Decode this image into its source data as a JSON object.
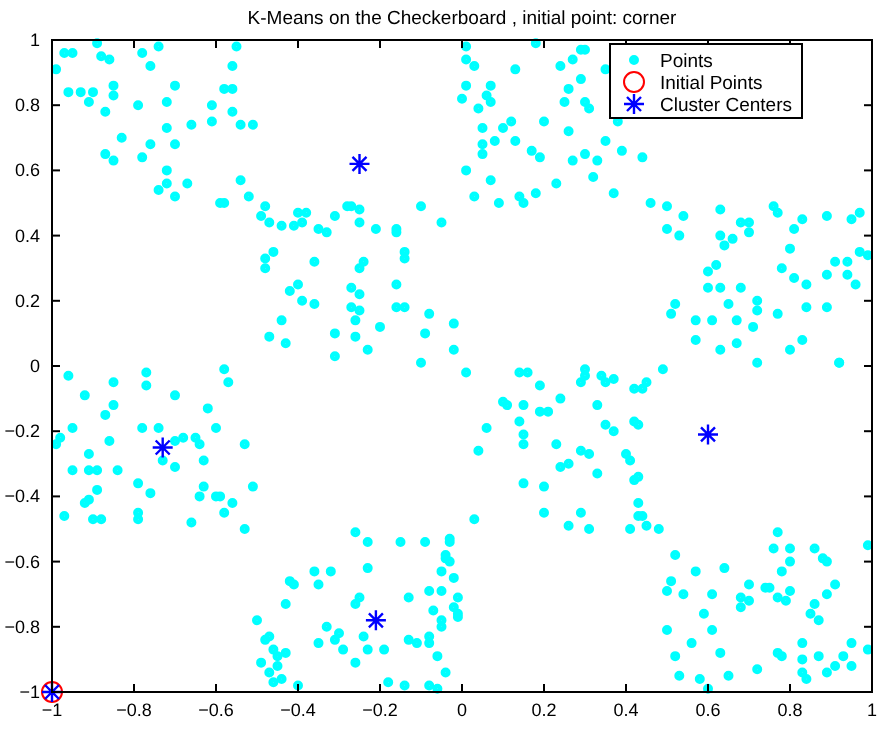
{
  "chart_data": {
    "type": "scatter",
    "title": "K-Means on the Checkerboard , initial point: corner",
    "xlim": [
      -1,
      1
    ],
    "ylim": [
      -1,
      1
    ],
    "xticks": [
      -1,
      -0.8,
      -0.6,
      -0.4,
      -0.2,
      0,
      0.2,
      0.4,
      0.6,
      0.8,
      1
    ],
    "yticks": [
      -1,
      -0.8,
      -0.6,
      -0.4,
      -0.2,
      0,
      0.2,
      0.4,
      0.6,
      0.8,
      1
    ],
    "grid": false,
    "legend": "top right",
    "series": [
      {
        "name": "Points",
        "color": "#00ffff",
        "marker": "circle",
        "x": [
          -0.97,
          -0.95,
          -0.99,
          -0.96,
          -0.93,
          -0.9,
          -0.91,
          -0.89,
          -0.88,
          -0.86,
          -0.85,
          -0.87,
          -0.85,
          -0.83,
          -0.87,
          -0.85,
          -0.79,
          -0.78,
          -0.76,
          -0.74,
          -0.78,
          -0.76,
          -0.72,
          -0.72,
          -0.7,
          -0.72,
          -0.74,
          -0.72,
          -0.7,
          -0.67,
          -0.7,
          -0.66,
          -0.61,
          -0.61,
          -0.58,
          -0.56,
          -0.56,
          -0.55,
          -0.56,
          -0.54,
          -0.51,
          -0.59,
          -0.58,
          -0.54,
          -0.52,
          -0.48,
          -0.49,
          -0.47,
          -0.44,
          -0.41,
          -0.4,
          -0.38,
          -0.39,
          -0.35,
          -0.33,
          -0.31,
          -0.28,
          -0.27,
          -0.25,
          -0.25,
          -0.21,
          -0.16,
          -0.16,
          -0.14,
          -0.14,
          -0.1,
          -0.05,
          -0.48,
          -0.48,
          -0.46,
          -0.42,
          -0.4,
          -0.39,
          -0.36,
          -0.36,
          -0.47,
          -0.44,
          -0.43,
          -0.31,
          -0.31,
          -0.27,
          -0.27,
          -0.25,
          -0.25,
          -0.24,
          -0.25,
          -0.26,
          -0.26,
          -0.23,
          -0.2,
          -0.16,
          -0.16,
          -0.14,
          -0.1,
          -0.09,
          -0.08,
          -0.02,
          -0.02,
          0.01,
          0.01,
          0.03,
          0.13,
          0.18,
          0.01,
          0.07,
          0.06,
          0.07,
          0.04,
          0,
          0.12,
          0.1,
          0.05,
          0.05,
          0.05,
          0.08,
          0.13,
          0.17,
          0.19,
          0.2,
          0.24,
          0.27,
          0.29,
          0.3,
          0.29,
          0.26,
          0.25,
          0.26,
          0.3,
          0.31,
          0.35,
          0.38,
          0.35,
          0.3,
          0.33,
          0.39,
          0.44,
          0.01,
          0.07,
          0.03,
          0.09,
          0.14,
          0.15,
          0.18,
          0.23,
          0.27,
          0.32,
          0.37,
          0.46,
          0.5,
          0.54,
          0.5,
          0.53,
          0.63,
          0.63,
          0.64,
          0.66,
          0.68,
          0.7,
          0.7,
          0.76,
          0.77,
          0.81,
          0.83,
          0.89,
          0.95,
          0.97,
          0.99,
          0.97,
          0.94,
          0.94,
          0.96,
          0.89,
          0.91,
          0.8,
          0.78,
          0.81,
          0.84,
          0.84,
          0.89,
          0.77,
          0.8,
          0.83,
          0.92,
          0.6,
          0.62,
          0.6,
          0.63,
          0.65,
          0.67,
          0.68,
          0.72,
          0.72,
          0.71,
          0.67,
          0.63,
          0.61,
          0.57,
          0.57,
          0.52,
          0.51,
          0.72,
          0.92,
          -0.96,
          -0.77,
          -0.58,
          -0.57,
          -0.77,
          -0.85,
          -0.92,
          -0.7,
          -0.85,
          -0.87,
          -0.62,
          -0.95,
          -0.98,
          -0.99,
          -0.86,
          -0.78,
          -0.74,
          -0.68,
          -0.7,
          -0.65,
          -0.64,
          -0.6,
          -0.53,
          -0.91,
          -0.95,
          -0.91,
          -0.89,
          -0.84,
          -0.73,
          -0.7,
          -0.63,
          -0.63,
          -0.51,
          -0.89,
          -0.79,
          -0.76,
          -0.91,
          -0.92,
          -0.64,
          -0.6,
          -0.59,
          -0.56,
          -0.58,
          -0.79,
          -0.79,
          -0.9,
          -0.88,
          -0.97,
          -0.66,
          -0.53,
          -0.26,
          -0.23,
          -0.15,
          -0.09,
          -0.03,
          -0.04,
          -0.23,
          -0.36,
          -0.32,
          -0.35,
          -0.42,
          -0.41,
          -0.43,
          -0.05,
          -0.03,
          -0.13,
          -0.08,
          -0.05,
          -0.01,
          -0.02,
          -0.01,
          -0.01,
          -0.07,
          -0.05,
          -0.05,
          -0.25,
          -0.26,
          -0.5,
          -0.47,
          -0.48,
          -0.46,
          -0.45,
          -0.43,
          -0.49,
          -0.47,
          -0.45,
          -0.46,
          -0.44,
          -0.4,
          -0.35,
          -0.33,
          -0.31,
          -0.3,
          -0.29,
          -0.24,
          -0.23,
          -0.26,
          -0.19,
          -0.18,
          -0.14,
          -0.13,
          -0.11,
          -0.08,
          -0.08,
          -0.06,
          -0.04,
          -0.08,
          -0.06,
          0.01,
          0.14,
          0.16,
          0.3,
          0.3,
          0.34,
          0.35,
          0.37,
          0.42,
          0.44,
          0.45,
          0.49,
          0.19,
          0.29,
          0.24,
          0.1,
          0.11,
          0.15,
          0.19,
          0.21,
          0.14,
          0.06,
          0.04,
          0.15,
          0.15,
          0.23,
          0.24,
          0.26,
          0.29,
          0.31,
          0.33,
          0.35,
          0.33,
          0.37,
          0.4,
          0.41,
          0.42,
          0.43,
          0.42,
          0.43,
          0.43,
          0.43,
          0.44,
          0.45,
          0.48,
          0.41,
          0.29,
          0.31,
          0.26,
          0.2,
          0.2,
          0.15,
          0.03,
          -0.03,
          -0.04,
          -0.02,
          0.52,
          0.51,
          0.5,
          0.54,
          0.57,
          0.64,
          0.61,
          0.59,
          0.61,
          0.5,
          0.56,
          0.52,
          0.53,
          0.58,
          0.63,
          0.65,
          0.6,
          0.68,
          0.68,
          0.7,
          0.7,
          0.74,
          0.75,
          0.77,
          0.76,
          0.78,
          0.77,
          0.79,
          0.8,
          0.8,
          0.8,
          0.86,
          0.88,
          0.89,
          0.91,
          0.89,
          0.85,
          0.86,
          0.87,
          0.99,
          0.99,
          0.95,
          0.93,
          0.87,
          0.83,
          0.83,
          0.77,
          0.78,
          0.72,
          0.83,
          0.89,
          0.91,
          0.95,
          0.84
        ],
        "values": [
          0.96,
          0.96,
          0.91,
          0.84,
          0.84,
          0.84,
          0.81,
          0.99,
          0.95,
          0.94,
          0.86,
          0.78,
          0.83,
          0.7,
          0.65,
          0.63,
          0.8,
          0.96,
          0.92,
          0.98,
          0.64,
          0.68,
          0.73,
          0.81,
          0.86,
          0.6,
          0.54,
          0.56,
          0.52,
          0.56,
          0.68,
          0.74,
          0.8,
          0.75,
          0.85,
          0.85,
          0.92,
          0.98,
          0.78,
          0.74,
          0.74,
          0.5,
          0.5,
          0.57,
          0.52,
          0.49,
          0.46,
          0.44,
          0.43,
          0.43,
          0.47,
          0.47,
          0.44,
          0.42,
          0.41,
          0.46,
          0.49,
          0.49,
          0.48,
          0.44,
          0.42,
          0.42,
          0.41,
          0.35,
          0.33,
          0.49,
          0.44,
          0.33,
          0.3,
          0.35,
          0.23,
          0.25,
          0.2,
          0.32,
          0.19,
          0.09,
          0.14,
          0.07,
          0.1,
          0.03,
          0.24,
          0.18,
          0.3,
          0.22,
          0.32,
          0.17,
          0.14,
          0.09,
          0.05,
          0.12,
          0.25,
          0.18,
          0.18,
          0.01,
          0.1,
          0.16,
          0.13,
          0.05,
          0.98,
          0.94,
          0.92,
          0.91,
          0.99,
          0.86,
          0.86,
          0.83,
          0.81,
          0.79,
          0.82,
          0.75,
          0.73,
          0.73,
          0.68,
          0.65,
          0.69,
          0.69,
          0.66,
          0.64,
          0.75,
          0.92,
          0.94,
          0.97,
          0.97,
          0.88,
          0.85,
          0.81,
          0.72,
          0.81,
          0.79,
          0.91,
          0.75,
          0.69,
          0.65,
          0.63,
          0.66,
          0.64,
          0.6,
          0.57,
          0.52,
          0.5,
          0.52,
          0.5,
          0.53,
          0.56,
          0.63,
          0.58,
          0.53,
          0.5,
          0.49,
          0.46,
          0.42,
          0.4,
          0.48,
          0.4,
          0.37,
          0.39,
          0.44,
          0.44,
          0.41,
          0.49,
          0.47,
          0.42,
          0.45,
          0.46,
          0.45,
          0.47,
          0.34,
          0.35,
          0.32,
          0.28,
          0.25,
          0.28,
          0.32,
          0.36,
          0.3,
          0.27,
          0.25,
          0.18,
          0.18,
          0.16,
          0.05,
          0.08,
          0.01,
          0.29,
          0.31,
          0.24,
          0.24,
          0.19,
          0.14,
          0.24,
          0.2,
          0.17,
          0.12,
          0.07,
          0.05,
          0.14,
          0.14,
          0.08,
          0.19,
          0.16,
          0.01,
          0.01,
          -0.03,
          -0.02,
          -0.01,
          -0.05,
          -0.06,
          -0.05,
          -0.09,
          -0.09,
          -0.12,
          -0.15,
          -0.13,
          -0.19,
          -0.22,
          -0.24,
          -0.23,
          -0.19,
          -0.19,
          -0.22,
          -0.23,
          -0.22,
          -0.24,
          -0.19,
          -0.24,
          -0.27,
          -0.32,
          -0.32,
          -0.32,
          -0.32,
          -0.29,
          -0.31,
          -0.29,
          -0.37,
          -0.37,
          -0.38,
          -0.36,
          -0.39,
          -0.41,
          -0.42,
          -0.4,
          -0.4,
          -0.4,
          -0.42,
          -0.45,
          -0.45,
          -0.47,
          -0.47,
          -0.47,
          -0.46,
          -0.48,
          -0.5,
          -0.51,
          -0.54,
          -0.54,
          -0.54,
          -0.54,
          -0.58,
          -0.62,
          -0.63,
          -0.63,
          -0.67,
          -0.66,
          -0.67,
          -0.73,
          -0.63,
          -0.6,
          -0.71,
          -0.69,
          -0.69,
          -0.71,
          -0.74,
          -0.76,
          -0.77,
          -0.75,
          -0.78,
          -0.8,
          -0.71,
          -0.73,
          -0.78,
          -0.83,
          -0.84,
          -0.87,
          -0.89,
          -0.88,
          -0.91,
          -0.94,
          -0.92,
          -0.97,
          -0.96,
          -0.98,
          -0.85,
          -0.8,
          -0.84,
          -0.82,
          -0.87,
          -0.83,
          -0.87,
          -0.91,
          -0.87,
          -0.97,
          -0.98,
          -0.84,
          -0.85,
          -0.83,
          -0.85,
          -0.89,
          -0.94,
          -0.98,
          -0.99,
          -0.02,
          -0.02,
          -0.02,
          -0.01,
          -0.03,
          -0.03,
          -0.05,
          -0.04,
          -0.07,
          -0.07,
          -0.05,
          -0.01,
          -0.06,
          -0.05,
          -0.1,
          -0.11,
          -0.12,
          -0.12,
          -0.14,
          -0.14,
          -0.17,
          -0.19,
          -0.26,
          -0.21,
          -0.24,
          -0.24,
          -0.31,
          -0.3,
          -0.26,
          -0.27,
          -0.33,
          -0.18,
          -0.12,
          -0.2,
          -0.27,
          -0.29,
          -0.17,
          -0.18,
          -0.35,
          -0.34,
          -0.42,
          -0.46,
          -0.46,
          -0.49,
          -0.5,
          -0.5,
          -0.45,
          -0.5,
          -0.49,
          -0.45,
          -0.37,
          -0.36,
          -0.47,
          -0.53,
          -0.59,
          -0.65,
          -0.58,
          -0.66,
          -0.69,
          -0.7,
          -0.63,
          -0.62,
          -0.7,
          -0.76,
          -0.81,
          -0.81,
          -0.85,
          -0.89,
          -0.95,
          -0.96,
          -0.88,
          -0.95,
          -0.99,
          -0.71,
          -0.74,
          -0.67,
          -0.72,
          -0.68,
          -0.68,
          -0.51,
          -0.56,
          -0.63,
          -0.71,
          -0.72,
          -0.56,
          -0.6,
          -0.69,
          -0.56,
          -0.59,
          -0.6,
          -0.67,
          -0.7,
          -0.76,
          -0.73,
          -0.78,
          -0.55,
          -0.87,
          -0.85,
          -0.89,
          -0.89,
          -0.85,
          -0.9,
          -0.88,
          -0.89,
          -0.93,
          -0.94,
          -0.94,
          -0.92,
          -0.92,
          -0.96
        ]
      },
      {
        "name": "Initial Points",
        "color": "#ff0000",
        "marker": "circle",
        "x": [
          -1
        ],
        "values": [
          -1
        ]
      },
      {
        "name": "Cluster Centers",
        "color": "#0000ff",
        "marker": "cross",
        "x": [
          -0.25,
          -0.73,
          -0.21,
          0.6,
          -1
        ],
        "values": [
          0.62,
          -0.25,
          -0.78,
          -0.21,
          -1
        ]
      }
    ]
  }
}
